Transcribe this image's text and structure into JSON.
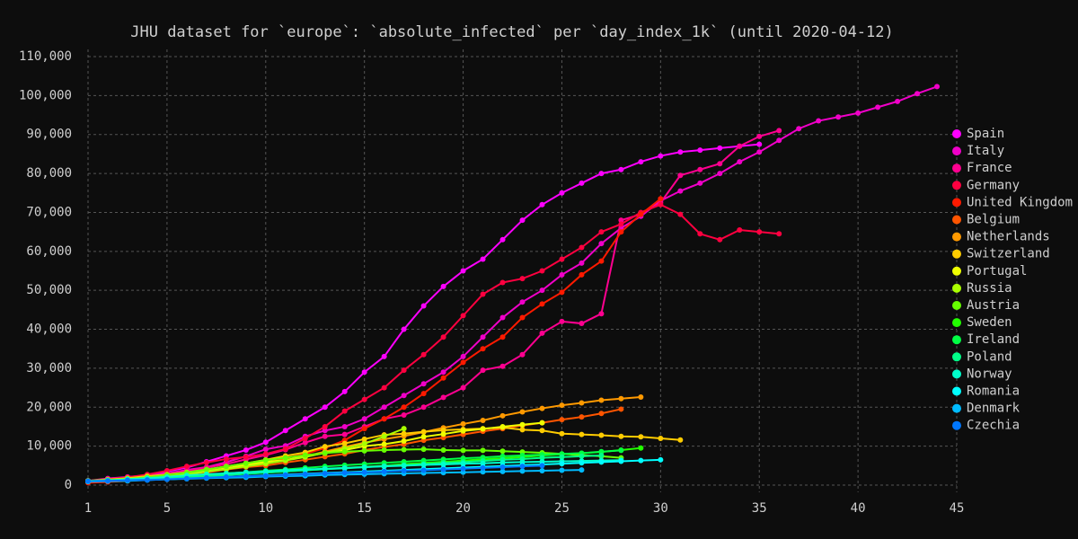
{
  "chart_data": {
    "type": "line",
    "title": "JHU dataset for `europe`: `absolute_infected` per `day_index_1k` (until 2020-04-12)",
    "x": [
      1,
      2,
      3,
      4,
      5,
      6,
      7,
      8,
      9,
      10,
      11,
      12,
      13,
      14,
      15,
      16,
      17,
      18,
      19,
      20,
      21,
      22,
      23,
      24,
      25,
      26,
      27,
      28,
      29,
      30,
      31,
      32,
      33,
      34,
      35,
      36,
      37,
      38,
      39,
      40,
      41,
      42,
      43,
      44
    ],
    "xlim": [
      1,
      45
    ],
    "xticks": [
      1,
      5,
      10,
      15,
      20,
      25,
      30,
      35,
      40,
      45
    ],
    "ylim": [
      0,
      110000
    ],
    "yticks": [
      0,
      {
        "value": 10000,
        "label": "10,000"
      },
      {
        "value": 20000,
        "label": "20,000"
      },
      {
        "value": 30000,
        "label": "30,000"
      },
      {
        "value": 40000,
        "label": "40,000"
      },
      {
        "value": 50000,
        "label": "50,000"
      },
      {
        "value": 60000,
        "label": "60,000"
      },
      {
        "value": 70000,
        "label": "70,000"
      },
      {
        "value": 80000,
        "label": "80,000"
      },
      {
        "value": 90000,
        "label": "90,000"
      },
      {
        "value": 100000,
        "label": "100,000"
      },
      {
        "value": 110000,
        "label": "110,000"
      }
    ],
    "grid": true,
    "legend": "right",
    "series": [
      {
        "name": "Spain",
        "color": "#ff00ff",
        "values": [
          1000,
          1500,
          2000,
          2500,
          3500,
          4500,
          6000,
          7500,
          9000,
          11000,
          14000,
          17000,
          20000,
          24000,
          29000,
          33000,
          40000,
          46000,
          51000,
          55000,
          58000,
          63000,
          68000,
          72000,
          75000,
          77500,
          80000,
          81000,
          83000,
          84500,
          85500,
          86000,
          86500,
          87000,
          87500,
          null,
          null,
          null,
          null,
          null,
          null,
          null,
          null,
          null
        ]
      },
      {
        "name": "Italy",
        "color": "#f000c8",
        "values": [
          1100,
          1700,
          2100,
          2500,
          3000,
          3900,
          4600,
          5900,
          7400,
          9200,
          10100,
          12500,
          14000,
          15000,
          17000,
          20000,
          23000,
          26000,
          29000,
          33000,
          38000,
          43000,
          47000,
          50000,
          54000,
          57000,
          62000,
          66000,
          69000,
          73000,
          75500,
          77500,
          80000,
          83000,
          85500,
          88500,
          91500,
          93500,
          94500,
          95500,
          97000,
          98500,
          100500,
          102300
        ]
      },
      {
        "name": "France",
        "color": "#ff0090",
        "values": [
          1100,
          1400,
          1800,
          2300,
          2800,
          3600,
          4500,
          5400,
          6600,
          7700,
          9100,
          10900,
          12500,
          13000,
          15000,
          17000,
          18000,
          20000,
          22500,
          25000,
          29500,
          30500,
          33500,
          39000,
          42000,
          41500,
          44000,
          68000,
          69500,
          72500,
          79500,
          81000,
          82500,
          87000,
          89500,
          91000,
          null,
          null,
          null,
          null,
          null,
          null,
          null,
          null
        ]
      },
      {
        "name": "Germany",
        "color": "#ff0040",
        "values": [
          1100,
          1500,
          2000,
          2700,
          3700,
          4800,
          5800,
          6700,
          7200,
          8000,
          9300,
          12000,
          15000,
          19000,
          22000,
          25000,
          29500,
          33500,
          38000,
          43500,
          49000,
          52000,
          53000,
          55000,
          58000,
          61000,
          65000,
          67000,
          70000,
          72000,
          69500,
          64500,
          63000,
          65500,
          65000,
          64500,
          null,
          null,
          null,
          null,
          null,
          null,
          null,
          null
        ]
      },
      {
        "name": "United Kingdom",
        "color": "#ff1a00",
        "values": [
          600,
          800,
          1100,
          1400,
          1900,
          2500,
          3200,
          4000,
          5000,
          5900,
          6900,
          8000,
          9500,
          11500,
          14500,
          17000,
          20000,
          23500,
          27500,
          31500,
          35000,
          38000,
          43000,
          46500,
          49500,
          54000,
          57500,
          65000,
          69500,
          73500,
          null,
          null,
          null,
          null,
          null,
          null,
          null,
          null,
          null,
          null,
          null,
          null,
          null,
          null
        ]
      },
      {
        "name": "Belgium",
        "color": "#ff5500",
        "values": [
          1000,
          1200,
          1500,
          1800,
          2300,
          2800,
          3400,
          4000,
          4600,
          5000,
          5800,
          6500,
          7300,
          8000,
          9000,
          9800,
          10500,
          11500,
          12200,
          13000,
          13800,
          14500,
          15300,
          16000,
          16800,
          17500,
          18400,
          19500,
          null,
          null,
          null,
          null,
          null,
          null,
          null,
          null,
          null,
          null,
          null,
          null,
          null,
          null,
          null,
          null
        ]
      },
      {
        "name": "Netherlands",
        "color": "#ff9900",
        "values": [
          1100,
          1400,
          1700,
          2100,
          2500,
          3000,
          3600,
          4300,
          5000,
          5600,
          6400,
          7400,
          8600,
          9800,
          10900,
          11800,
          12600,
          13600,
          14700,
          15700,
          16600,
          17800,
          18800,
          19700,
          20500,
          21100,
          21800,
          22200,
          22600,
          null,
          null,
          null,
          null,
          null,
          null,
          null,
          null,
          null,
          null,
          null,
          null,
          null,
          null,
          null
        ]
      },
      {
        "name": "Switzerland",
        "color": "#ffcc00",
        "values": [
          1100,
          1400,
          1800,
          2300,
          2700,
          3300,
          4000,
          4800,
          5600,
          6500,
          7500,
          8400,
          9900,
          10700,
          11800,
          12900,
          13200,
          13700,
          14100,
          14300,
          14500,
          14800,
          14200,
          14000,
          13200,
          13000,
          12800,
          12500,
          12400,
          12000,
          11600,
          null,
          null,
          null,
          null,
          null,
          null,
          null,
          null,
          null,
          null,
          null,
          null,
          null
        ]
      },
      {
        "name": "Portugal",
        "color": "#eeff00",
        "values": [
          1000,
          1300,
          1600,
          2000,
          2400,
          2800,
          3500,
          4300,
          5200,
          6000,
          6400,
          7400,
          8200,
          9000,
          10000,
          10500,
          11300,
          12400,
          13100,
          13900,
          14400,
          15000,
          15500,
          16000,
          null,
          null,
          null,
          null,
          null,
          null,
          null,
          null,
          null,
          null,
          null,
          null,
          null,
          null,
          null,
          null,
          null,
          null,
          null,
          null
        ]
      },
      {
        "name": "Russia",
        "color": "#aaff00",
        "values": [
          1100,
          1300,
          1500,
          1800,
          2300,
          2800,
          3500,
          4100,
          4800,
          5500,
          6300,
          7200,
          8300,
          9400,
          10600,
          12500,
          14500,
          null,
          null,
          null,
          null,
          null,
          null,
          null,
          null,
          null,
          null,
          null,
          null,
          null,
          null,
          null,
          null,
          null,
          null,
          null,
          null,
          null,
          null,
          null,
          null,
          null,
          null,
          null
        ]
      },
      {
        "name": "Austria",
        "color": "#66ff00",
        "values": [
          1000,
          1300,
          1600,
          2000,
          2600,
          3200,
          4000,
          4800,
          5600,
          6400,
          7000,
          7700,
          8200,
          8600,
          8800,
          9000,
          9100,
          9200,
          9000,
          8900,
          8900,
          8700,
          8500,
          8300,
          8000,
          7700,
          7400,
          7000,
          null,
          null,
          null,
          null,
          null,
          null,
          null,
          null,
          null,
          null,
          null,
          null,
          null,
          null,
          null,
          null
        ]
      },
      {
        "name": "Sweden",
        "color": "#22ff00",
        "values": [
          1000,
          1200,
          1400,
          1600,
          1800,
          2000,
          2300,
          2600,
          2900,
          3200,
          3500,
          3800,
          4100,
          4400,
          4700,
          5000,
          5400,
          5700,
          6000,
          6300,
          6600,
          6900,
          7200,
          7600,
          7900,
          8200,
          8500,
          9000,
          9500,
          null,
          null,
          null,
          null,
          null,
          null,
          null,
          null,
          null,
          null,
          null,
          null,
          null,
          null,
          null
        ]
      },
      {
        "name": "Ireland",
        "color": "#00ff44",
        "values": [
          1000,
          1200,
          1400,
          1700,
          2000,
          2300,
          2600,
          3000,
          3300,
          3700,
          4000,
          4400,
          4800,
          5100,
          5400,
          5700,
          6000,
          6300,
          6600,
          6900,
          7100,
          7400,
          7600,
          7800,
          8000,
          8200,
          8600,
          8900,
          null,
          null,
          null,
          null,
          null,
          null,
          null,
          null,
          null,
          null,
          null,
          null,
          null,
          null,
          null,
          null
        ]
      },
      {
        "name": "Poland",
        "color": "#00ff88",
        "values": [
          1000,
          1200,
          1400,
          1600,
          1800,
          2000,
          2300,
          2600,
          2900,
          3200,
          3500,
          3800,
          4100,
          4300,
          4600,
          4900,
          5100,
          5400,
          5700,
          5900,
          6200,
          6500,
          6700,
          7000,
          7200,
          7400,
          7600,
          null,
          null,
          null,
          null,
          null,
          null,
          null,
          null,
          null,
          null,
          null,
          null,
          null,
          null,
          null,
          null,
          null
        ]
      },
      {
        "name": "Norway",
        "color": "#00ffcc",
        "values": [
          1000,
          1200,
          1500,
          1800,
          2100,
          2500,
          2800,
          3000,
          3300,
          3500,
          3800,
          4000,
          4200,
          4400,
          4600,
          4800,
          5000,
          5200,
          5300,
          5500,
          5600,
          5800,
          5900,
          6000,
          6100,
          6200,
          6300,
          6400,
          null,
          null,
          null,
          null,
          null,
          null,
          null,
          null,
          null,
          null,
          null,
          null,
          null,
          null,
          null,
          null
        ]
      },
      {
        "name": "Romania",
        "color": "#00ffff",
        "values": [
          900,
          1000,
          1100,
          1300,
          1500,
          1700,
          1900,
          2100,
          2300,
          2500,
          2700,
          2900,
          3100,
          3300,
          3500,
          3700,
          3900,
          4100,
          4300,
          4500,
          4700,
          4900,
          5100,
          5300,
          5500,
          5700,
          5900,
          6100,
          6300,
          6500,
          null,
          null,
          null,
          null,
          null,
          null,
          null,
          null,
          null,
          null,
          null,
          null,
          null,
          null
        ]
      },
      {
        "name": "Denmark",
        "color": "#00bbff",
        "values": [
          1000,
          1100,
          1300,
          1400,
          1500,
          1600,
          1800,
          1900,
          2000,
          2200,
          2300,
          2400,
          2600,
          2700,
          2800,
          2900,
          3000,
          3100,
          3200,
          3300,
          3400,
          3500,
          3600,
          3700,
          3800,
          3900,
          null,
          null,
          null,
          null,
          null,
          null,
          null,
          null,
          null,
          null,
          null,
          null,
          null,
          null,
          null,
          null,
          null,
          null
        ]
      },
      {
        "name": "Czechia",
        "color": "#0077ff",
        "values": [
          1000,
          1100,
          1200,
          1300,
          1500,
          1700,
          1900,
          2100,
          2300,
          2400,
          2600,
          2800,
          3000,
          3200,
          3300,
          3500,
          3700,
          3800,
          4000,
          4200,
          4400,
          4600,
          4800,
          5000,
          null,
          null,
          null,
          null,
          null,
          null,
          null,
          null,
          null,
          null,
          null,
          null,
          null,
          null,
          null,
          null,
          null,
          null,
          null,
          null
        ]
      }
    ]
  }
}
